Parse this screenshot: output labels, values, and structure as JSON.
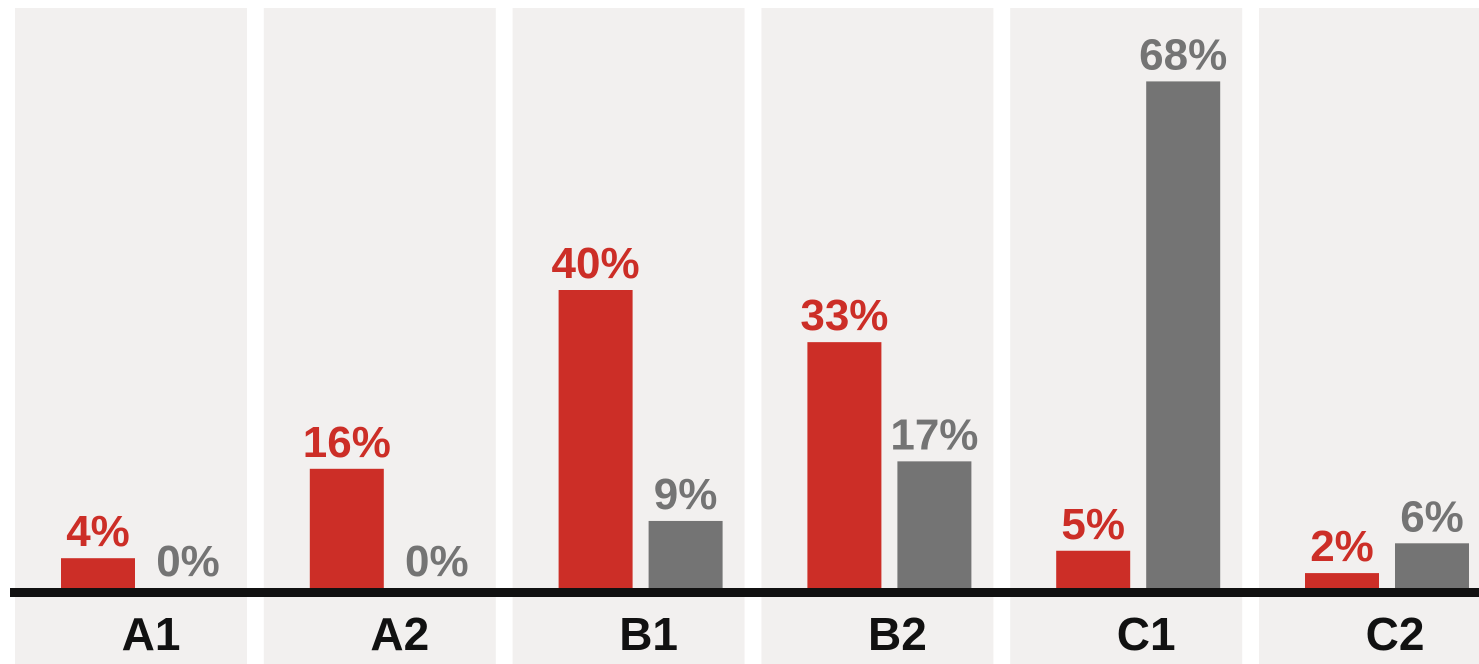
{
  "chart_data": {
    "type": "bar",
    "categories": [
      "A1",
      "A2",
      "B1",
      "B2",
      "C1",
      "C2"
    ],
    "series": [
      {
        "values": [
          4,
          16,
          40,
          33,
          5,
          2
        ],
        "labels": [
          "4%",
          "16%",
          "40%",
          "33%",
          "5%",
          "2%"
        ],
        "color": "#cc2e27"
      },
      {
        "values": [
          0,
          0,
          9,
          17,
          68,
          6
        ],
        "labels": [
          "0%",
          "0%",
          "9%",
          "17%",
          "68%",
          "6%"
        ],
        "color": "#747474"
      }
    ],
    "ylim": [
      0,
      70
    ],
    "grid": false,
    "legend": "none",
    "colors": {
      "panel": "#f2f0ef",
      "axis": "#111111"
    }
  }
}
